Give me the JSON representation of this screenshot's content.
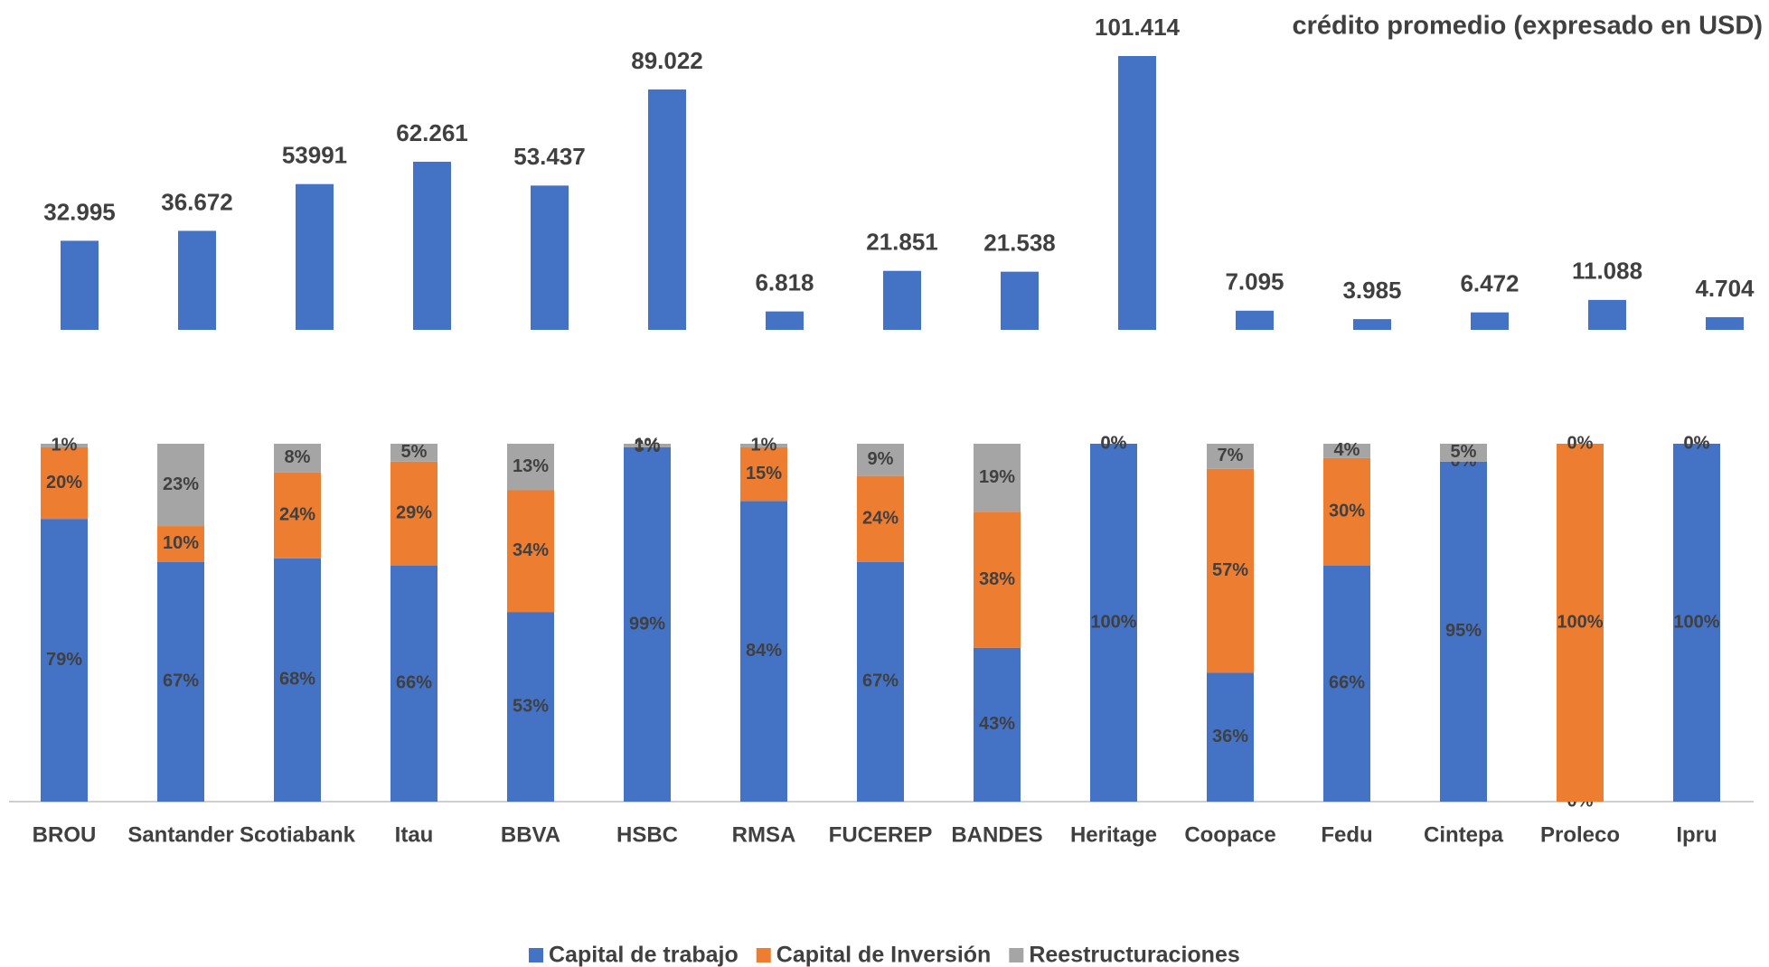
{
  "chart_data": [
    {
      "type": "bar",
      "title": "crédito promedio (expresado en USD)",
      "color": "#4472c4",
      "values": [
        32995,
        36672,
        53991,
        62261,
        53437,
        89022,
        6818,
        21851,
        21538,
        101414,
        7095,
        3985,
        6472,
        11088,
        4704
      ],
      "value_labels": [
        "32.995",
        "36.672",
        "53991",
        "62.261",
        "53.437",
        "89.022",
        "6.818",
        "21.851",
        "21.538",
        "101.414",
        "7.095",
        "3.985",
        "6.472",
        "11.088",
        "4.704"
      ]
    },
    {
      "type": "stacked_bar",
      "categories": [
        "BROU",
        "Santander",
        "Scotiabank",
        "Itau",
        "BBVA",
        "HSBC",
        "RMSA",
        "FUCEREP",
        "BANDES",
        "Heritage",
        "Coopace",
        "Fedu",
        "Cintepa",
        "Proleco",
        "Ipru"
      ],
      "ylim": [
        0,
        100
      ],
      "legend": "bottom",
      "series": [
        {
          "name": "Capital de trabajo",
          "color": "#4472c4",
          "values": [
            79,
            67,
            68,
            66,
            53,
            99,
            84,
            67,
            43,
            100,
            36,
            66,
            95,
            0,
            100
          ],
          "value_labels": [
            "79%",
            "67%",
            "68%",
            "66%",
            "53%",
            "99%",
            "84%",
            "67%",
            "43%",
            "100%",
            "36%",
            "66%",
            "95%",
            "0%",
            "100%"
          ]
        },
        {
          "name": "Capital de Inversión",
          "color": "#ed7d31",
          "values": [
            20,
            10,
            24,
            29,
            34,
            0,
            15,
            24,
            38,
            0,
            57,
            30,
            0,
            100,
            0
          ],
          "value_labels": [
            "20%",
            "10%",
            "24%",
            "29%",
            "34%",
            "0%",
            "15%",
            "24%",
            "38%",
            "0%",
            "57%",
            "30%",
            "0%",
            "100%",
            "0%"
          ]
        },
        {
          "name": "Reestructuraciones",
          "color": "#a5a5a5",
          "values": [
            1,
            23,
            8,
            5,
            13,
            1,
            1,
            9,
            19,
            0,
            7,
            4,
            5,
            0,
            0
          ],
          "value_labels": [
            "1%",
            "23%",
            "8%",
            "5%",
            "13%",
            "1%",
            "1%",
            "9%",
            "19%",
            "0%",
            "7%",
            "4%",
            "5%",
            "0%",
            "0%"
          ]
        }
      ]
    }
  ]
}
